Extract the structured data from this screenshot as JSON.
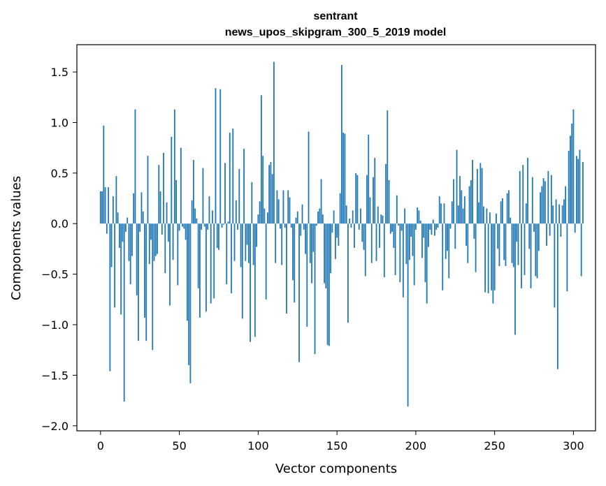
{
  "chart_data": {
    "type": "bar",
    "title": "sentrant",
    "subtitle": "news_upos_skipgram_300_5_2019 model",
    "xlabel": "Vector components",
    "ylabel": "Components values",
    "xlim": [
      -15,
      314
    ],
    "ylim": [
      -2.05,
      1.77
    ],
    "x_ticks": [
      {
        "value": 0,
        "label": "0"
      },
      {
        "value": 50,
        "label": "50"
      },
      {
        "value": 100,
        "label": "100"
      },
      {
        "value": 150,
        "label": "150"
      },
      {
        "value": 200,
        "label": "200"
      },
      {
        "value": 250,
        "label": "250"
      },
      {
        "value": 300,
        "label": "300"
      }
    ],
    "y_ticks": [
      {
        "value": 1.5,
        "label": "1.5"
      },
      {
        "value": 1.0,
        "label": "1.0"
      },
      {
        "value": 0.5,
        "label": "0.5"
      },
      {
        "value": 0.0,
        "label": "0.0"
      },
      {
        "value": -0.5,
        "label": "−0.5"
      },
      {
        "value": -1.0,
        "label": "−1.0"
      },
      {
        "value": -1.5,
        "label": "−1.5"
      },
      {
        "value": -2.0,
        "label": "−2.0"
      }
    ],
    "grid": false,
    "bar_color": "#1f77b4",
    "values": [
      0.32,
      0.32,
      0.97,
      0.36,
      -0.1,
      0.36,
      -1.46,
      -0.43,
      0.27,
      -0.83,
      0.47,
      0.11,
      -0.24,
      -0.9,
      -0.18,
      -1.76,
      -0.08,
      0.06,
      -0.37,
      -0.6,
      -0.32,
      0.3,
      1.13,
      -0.71,
      -1.16,
      -0.08,
      0.31,
      0.12,
      -0.93,
      -1.16,
      0.67,
      -0.4,
      -0.16,
      -1.25,
      -0.37,
      -0.32,
      -0.3,
      0.58,
      0.32,
      -0.11,
      0.7,
      -0.49,
      0.21,
      -0.18,
      -0.81,
      0.86,
      -0.36,
      1.13,
      0.43,
      -0.61,
      -0.07,
      0.75,
      -0.03,
      -0.05,
      -0.16,
      -0.96,
      -1.4,
      -1.58,
      0.23,
      0.63,
      0.15,
      0.05,
      -0.64,
      -0.93,
      -0.06,
      0.55,
      -0.03,
      -0.87,
      -0.06,
      0.27,
      -0.79,
      0.13,
      -0.74,
      1.34,
      -0.24,
      -0.26,
      1.33,
      -0.04,
      -0.01,
      0.6,
      -0.6,
      0.02,
      0.9,
      -0.69,
      0.94,
      -0.37,
      0.23,
      -0.06,
      0.54,
      -0.43,
      -0.94,
      0.74,
      -0.37,
      -0.21,
      -0.39,
      -1.17,
      0.41,
      -0.41,
      -1.12,
      -0.23,
      0.09,
      0.22,
      1.27,
      0.67,
      0.15,
      -0.75,
      0.11,
      0.58,
      0.61,
      0.49,
      1.6,
      -0.39,
      0.33,
      0.24,
      -0.05,
      -0.41,
      0.33,
      -0.04,
      -0.89,
      0.33,
      0.26,
      -0.04,
      -0.56,
      -0.78,
      0.06,
      0.12,
      -1.37,
      -0.12,
      0.19,
      -0.06,
      -0.3,
      -1.02,
      0.91,
      -0.39,
      -0.59,
      -0.28,
      -1.29,
      -0.02,
      0.12,
      0.15,
      0.44,
      0.09,
      -0.59,
      -0.64,
      -1.2,
      -1.21,
      -0.49,
      -0.09,
      0.13,
      -0.35,
      -0.14,
      -0.22,
      0.3,
      1.57,
      0.9,
      0.89,
      0.18,
      -0.98,
      0.05,
      -0.04,
      0.13,
      -0.24,
      0.5,
      0.48,
      -0.06,
      0.15,
      -0.18,
      -0.26,
      -0.52,
      0.48,
      0.88,
      0.26,
      -0.39,
      0.46,
      0.65,
      -0.37,
      0.17,
      -0.24,
      0.09,
      0.08,
      -0.53,
      0.59,
      1.12,
      0.43,
      -0.1,
      -0.08,
      -0.24,
      -0.51,
      0.28,
      -0.02,
      -0.58,
      -0.07,
      -0.73,
      0.15,
      -0.4,
      -1.81,
      -0.36,
      -0.13,
      -0.32,
      -0.61,
      -0.06,
      0.16,
      0.13,
      0.03,
      -0.34,
      -0.14,
      -0.58,
      -0.79,
      -0.23,
      -0.06,
      -0.11,
      0.04,
      -0.12,
      -0.06,
      -0.04,
      0.27,
      0.2,
      -0.66,
      0.2,
      -0.35,
      -0.27,
      -0.54,
      -0.05,
      0.22,
      0.44,
      -0.25,
      0.73,
      0.18,
      0.47,
      0.33,
      0.15,
      0.27,
      -0.22,
      -0.39,
      0.37,
      0.43,
      0.63,
      -0.15,
      -0.48,
      0.54,
      0.21,
      0.6,
      0.55,
      0.17,
      -0.68,
      0.15,
      -0.69,
      0.11,
      -0.66,
      -0.79,
      -0.66,
      0.1,
      -0.25,
      -0.42,
      0.22,
      0.25,
      -0.36,
      -0.42,
      0.3,
      0.33,
      0.06,
      -0.39,
      -0.43,
      -1.1,
      -0.18,
      -0.41,
      0.52,
      -0.64,
      0.58,
      -0.51,
      0.2,
      0.65,
      -0.25,
      -0.64,
      0.46,
      -0.08,
      -0.52,
      -0.54,
      -0.27,
      0.31,
      0.37,
      0.45,
      0.42,
      -0.22,
      0.52,
      -0.12,
      0.48,
      0.18,
      -0.83,
      0.24,
      -1.44,
      0.19,
      -0.13,
      0.18,
      0.24,
      0.37,
      -0.67,
      0.72,
      0.87,
      0.99,
      1.13,
      -0.09,
      0.67,
      0.64,
      0.73,
      -0.52,
      0.61
    ]
  }
}
